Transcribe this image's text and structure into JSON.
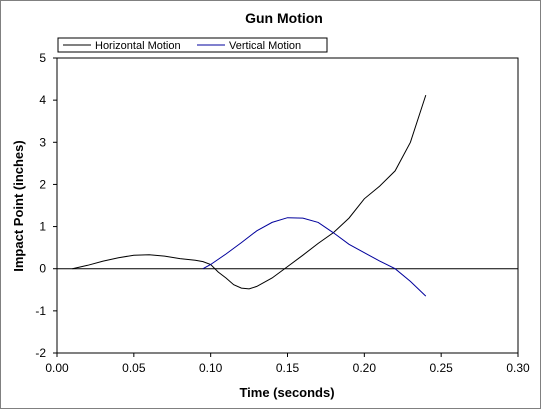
{
  "chart_data": {
    "type": "line",
    "title": "Gun Motion",
    "xlabel": "Time (seconds)",
    "ylabel": "Impact Point (inches)",
    "xlim": [
      0.0,
      0.3
    ],
    "ylim": [
      -2,
      5
    ],
    "x_ticks": [
      "0.00",
      "0.05",
      "0.10",
      "0.15",
      "0.20",
      "0.25",
      "0.30"
    ],
    "x_tick_values": [
      0.0,
      0.05,
      0.1,
      0.15,
      0.2,
      0.25,
      0.3
    ],
    "y_ticks": [
      "-2",
      "-1",
      "0",
      "1",
      "2",
      "3",
      "4",
      "5"
    ],
    "y_tick_values": [
      -2,
      -1,
      0,
      1,
      2,
      3,
      4,
      5
    ],
    "grid": false,
    "zero_line": true,
    "legend_position": "top-left",
    "series": [
      {
        "name": "Horizontal Motion",
        "color": "#000000",
        "x": [
          0.01,
          0.02,
          0.03,
          0.04,
          0.05,
          0.06,
          0.07,
          0.08,
          0.09,
          0.095,
          0.1,
          0.105,
          0.11,
          0.115,
          0.12,
          0.125,
          0.13,
          0.14,
          0.15,
          0.16,
          0.17,
          0.18,
          0.19,
          0.2,
          0.21,
          0.22,
          0.23,
          0.24
        ],
        "y": [
          0.0,
          0.08,
          0.18,
          0.26,
          0.32,
          0.33,
          0.3,
          0.24,
          0.2,
          0.17,
          0.1,
          -0.08,
          -0.22,
          -0.38,
          -0.46,
          -0.48,
          -0.42,
          -0.22,
          0.05,
          0.32,
          0.6,
          0.86,
          1.2,
          1.66,
          1.96,
          2.32,
          3.0,
          4.12
        ]
      },
      {
        "name": "Vertical Motion",
        "color": "#00009c",
        "x": [
          0.095,
          0.1,
          0.11,
          0.12,
          0.13,
          0.14,
          0.15,
          0.16,
          0.17,
          0.18,
          0.19,
          0.2,
          0.21,
          0.22,
          0.23,
          0.24
        ],
        "y": [
          0.0,
          0.1,
          0.35,
          0.62,
          0.9,
          1.1,
          1.21,
          1.2,
          1.1,
          0.85,
          0.58,
          0.38,
          0.18,
          0.0,
          -0.3,
          -0.65
        ]
      }
    ]
  }
}
